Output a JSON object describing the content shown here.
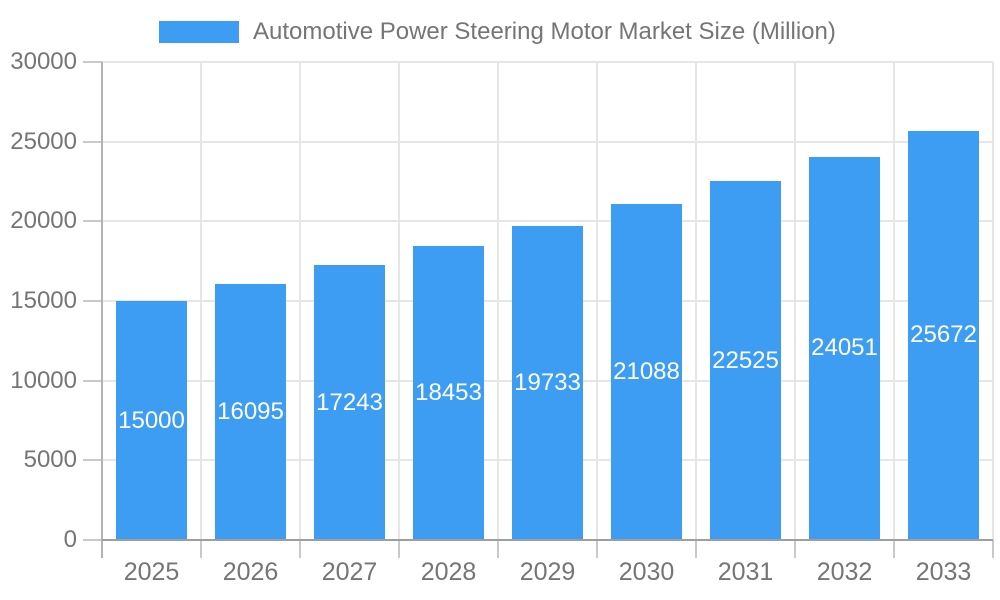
{
  "chart_data": {
    "type": "bar",
    "title": "Automotive Power Steering Motor Market Size (Million)",
    "categories": [
      "2025",
      "2026",
      "2027",
      "2028",
      "2029",
      "2030",
      "2031",
      "2032",
      "2033"
    ],
    "series": [
      {
        "name": "Automotive Power Steering Motor Market Size (Million)",
        "values": [
          15000,
          16095,
          17243,
          18453,
          19733,
          21088,
          22525,
          24051,
          25672
        ]
      }
    ],
    "value_labels": [
      "15000",
      "16095",
      "17243",
      "18453",
      "19733",
      "21088",
      "22525",
      "24051",
      "25672"
    ],
    "xlabel": "",
    "ylabel": "",
    "ylim": [
      0,
      30000
    ],
    "yticks": [
      0,
      5000,
      10000,
      15000,
      20000,
      25000,
      30000
    ],
    "ytick_labels": [
      "0",
      "5000",
      "10000",
      "15000",
      "20000",
      "25000",
      "30000"
    ],
    "grid": true,
    "legend_position": "top",
    "colors": {
      "bar": "#3D9DF3",
      "label_text": "#757575",
      "value_label_text": "#ffffff",
      "gridline": "#e6e6e6",
      "axis_line": "#9e9e9e",
      "background": "#ffffff"
    }
  }
}
